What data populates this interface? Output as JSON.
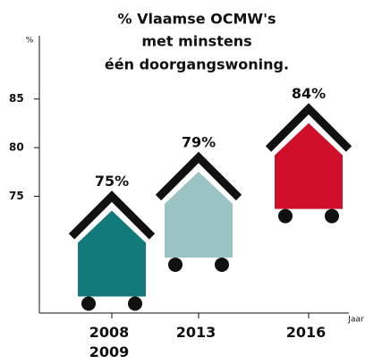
{
  "chart_data": {
    "type": "bar",
    "title": [
      "% Vlaamse OCMW's",
      "met minstens",
      "één doorgangswoning."
    ],
    "y_label": "%",
    "x_label": "Jaar",
    "categories": [
      "2008\n2009",
      "2013",
      "2016"
    ],
    "values": [
      75,
      79,
      84
    ],
    "value_labels": [
      "75%",
      "79%",
      "84%"
    ],
    "colors": [
      "#137a7b",
      "#9ac4c3",
      "#d0102b"
    ],
    "ylim": [
      63,
      91.5
    ],
    "yticks": [
      75,
      80,
      85
    ]
  }
}
